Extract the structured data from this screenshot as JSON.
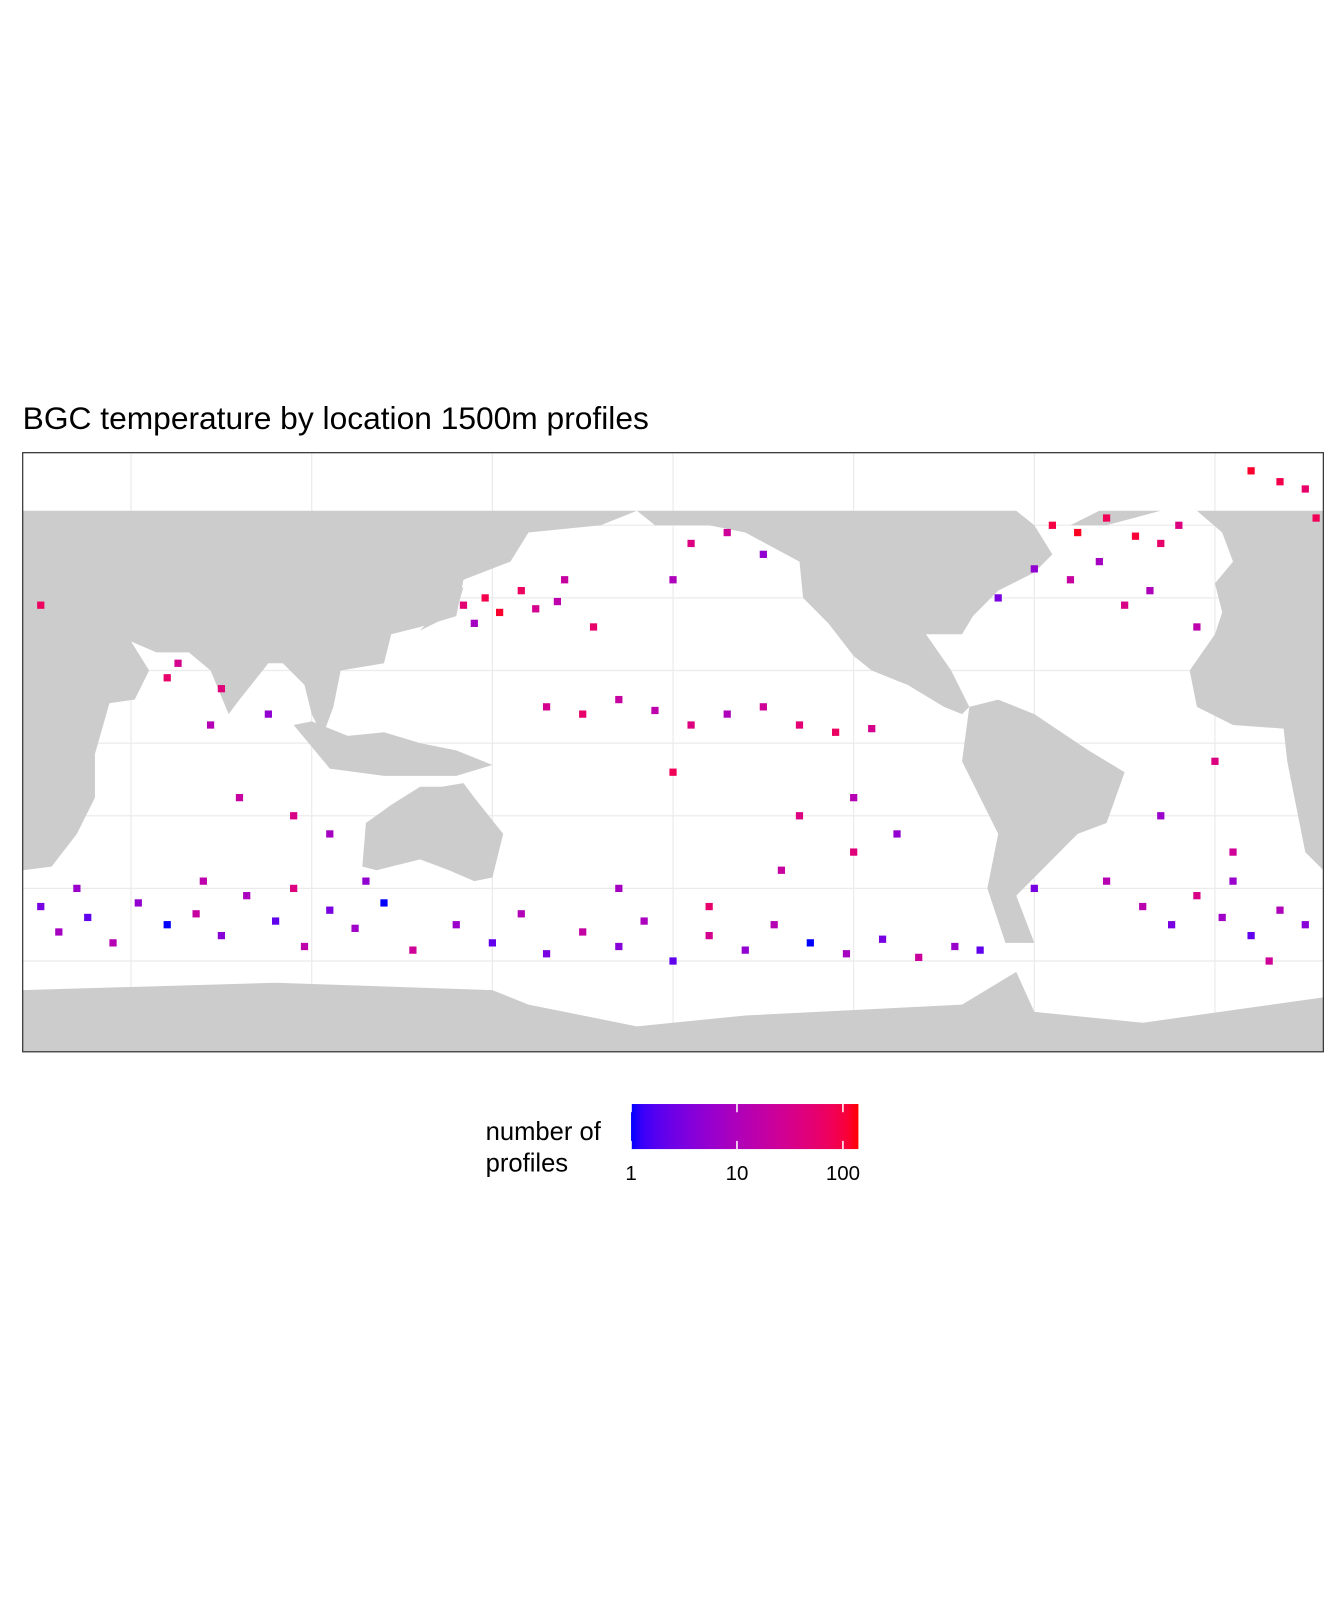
{
  "chart_data": {
    "type": "geo-tile",
    "title": "BGC temperature by location 1500m profiles",
    "xlim": [
      20,
      380
    ],
    "ylim": [
      -85,
      80
    ],
    "color_scale": {
      "title": "number of profiles",
      "log": true,
      "low": "#0000ff",
      "high": "#ff0000",
      "limits": [
        1,
        140
      ],
      "ticks": [
        1,
        10,
        100
      ]
    },
    "land_color": "#cccccc",
    "x": [
      25,
      30,
      38,
      45,
      52,
      60,
      68,
      75,
      82,
      90,
      98,
      105,
      112,
      120,
      128,
      140,
      150,
      158,
      165,
      175,
      185,
      192,
      200,
      210,
      220,
      228,
      238,
      248,
      258,
      268,
      278,
      285,
      330,
      338,
      345,
      352,
      360,
      368,
      375,
      35,
      70,
      95,
      115,
      185,
      230,
      250,
      300,
      320,
      355,
      365,
      210,
      142,
      148,
      152,
      158,
      162,
      168,
      145,
      170,
      178,
      205,
      215,
      200,
      225,
      165,
      175,
      185,
      195,
      205,
      215,
      225,
      235,
      245,
      255,
      200,
      235,
      250,
      262,
      60,
      63,
      75,
      88,
      72,
      80,
      95,
      105,
      305,
      312,
      320,
      328,
      335,
      340,
      300,
      310,
      318,
      325,
      332,
      345,
      290,
      360,
      368,
      375,
      378,
      25,
      350,
      335,
      355
    ],
    "y": [
      -45,
      -52,
      -48,
      -55,
      -44,
      -50,
      -47,
      -53,
      -42,
      -49,
      -56,
      -46,
      -51,
      -44,
      -57,
      -50,
      -55,
      -47,
      -58,
      -52,
      -56,
      -49,
      -60,
      -53,
      -57,
      -50,
      -55,
      -58,
      -54,
      -59,
      -56,
      -57,
      -45,
      -50,
      -42,
      -48,
      -53,
      -46,
      -50,
      -40,
      -38,
      -40,
      -38,
      -40,
      -35,
      -30,
      -40,
      -38,
      -38,
      -60,
      -45,
      38,
      40,
      36,
      42,
      37,
      39,
      33,
      45,
      32,
      55,
      58,
      45,
      52,
      10,
      8,
      12,
      9,
      5,
      8,
      10,
      5,
      3,
      4,
      -8,
      -20,
      -15,
      -25,
      18,
      22,
      15,
      8,
      5,
      -15,
      -20,
      -25,
      60,
      58,
      62,
      57,
      55,
      60,
      48,
      45,
      50,
      38,
      42,
      32,
      40,
      75,
      72,
      70,
      62,
      38,
      -5,
      -20,
      -30
    ],
    "values": [
      3,
      8,
      2,
      12,
      5,
      1,
      20,
      4,
      9,
      2,
      15,
      3,
      7,
      1,
      25,
      6,
      2,
      11,
      3,
      18,
      4,
      9,
      2,
      30,
      5,
      12,
      1,
      8,
      3,
      22,
      6,
      2,
      14,
      3,
      35,
      7,
      2,
      10,
      4,
      6,
      15,
      40,
      5,
      8,
      20,
      45,
      3,
      12,
      6,
      25,
      60,
      50,
      90,
      120,
      70,
      30,
      15,
      8,
      20,
      60,
      40,
      25,
      10,
      5,
      30,
      60,
      20,
      15,
      40,
      10,
      25,
      50,
      70,
      30,
      80,
      40,
      12,
      5,
      60,
      30,
      45,
      5,
      12,
      20,
      35,
      8,
      100,
      130,
      80,
      110,
      60,
      40,
      5,
      20,
      8,
      35,
      10,
      15,
      3,
      120,
      90,
      60,
      80,
      70,
      40,
      6,
      25
    ]
  }
}
